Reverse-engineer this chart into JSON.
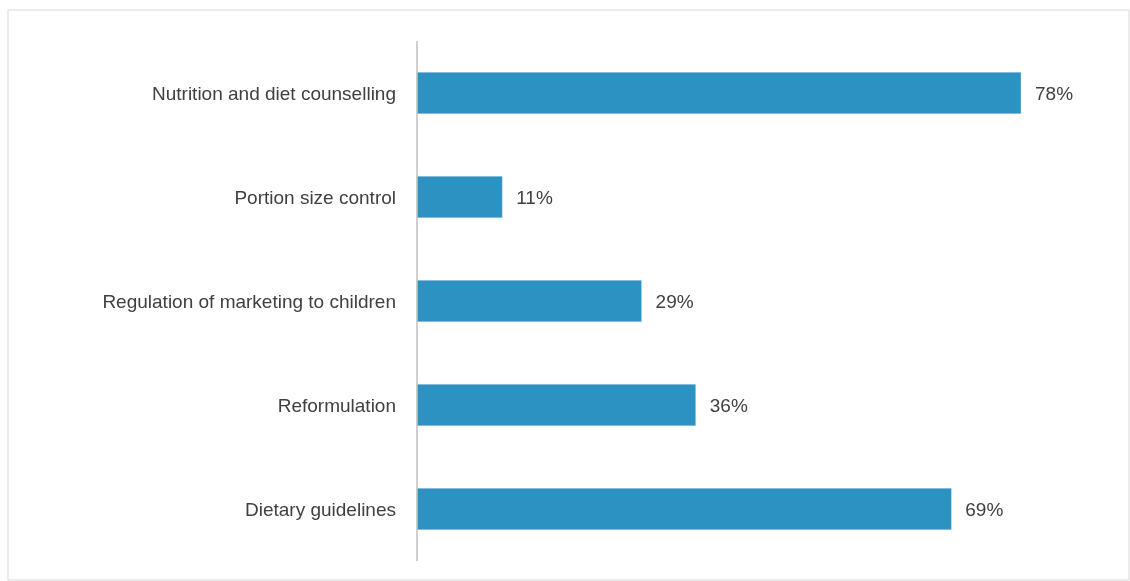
{
  "chart_data": {
    "type": "bar",
    "orientation": "horizontal",
    "categories": [
      "Nutrition and diet counselling",
      "Portion size control",
      "Regulation of marketing to children",
      "Reformulation",
      "Dietary guidelines"
    ],
    "values": [
      78,
      11,
      29,
      36,
      69
    ],
    "color": "#2b92c2",
    "data_labels": true,
    "value_labels": [
      "78%",
      "11%",
      "29%",
      "36%",
      "69%"
    ]
  }
}
